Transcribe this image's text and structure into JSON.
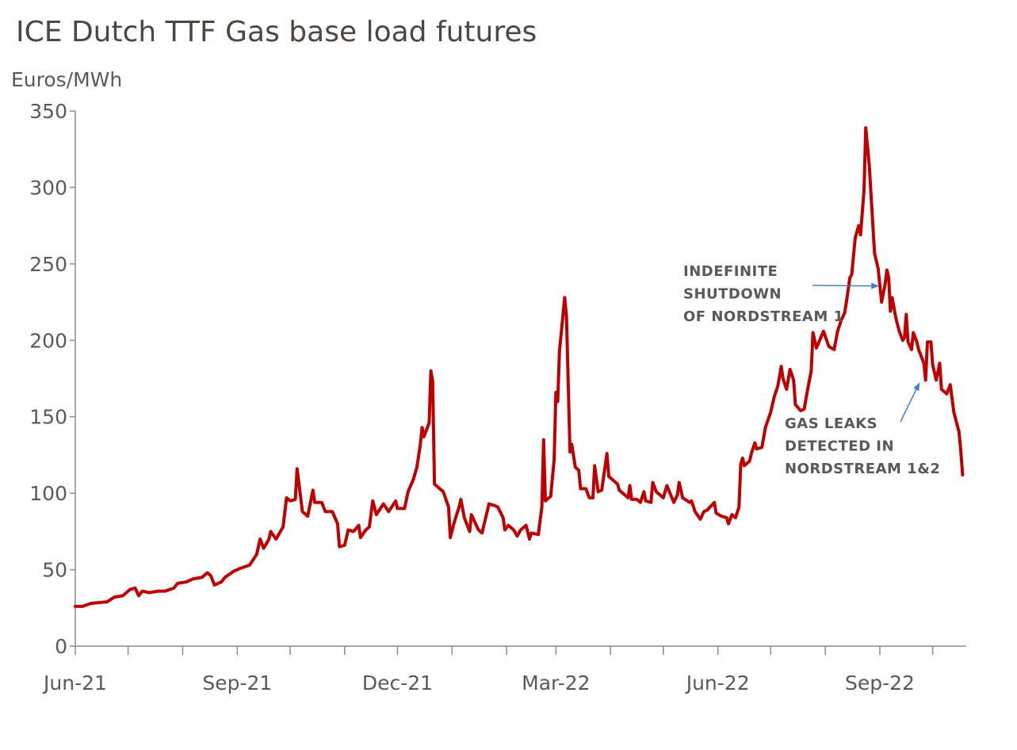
{
  "chart_data": {
    "type": "line",
    "title": "ICE Dutch TTF Gas base load futures",
    "ylabel": "Euros/MWh",
    "xlabel": "",
    "ylim": [
      0,
      350
    ],
    "yticks": [
      0,
      50,
      100,
      150,
      200,
      250,
      300,
      350
    ],
    "xlim": [
      "2021-06-01",
      "2022-10-20"
    ],
    "xtick_labels": [
      {
        "date": "2021-06-01",
        "label": "Jun-21"
      },
      {
        "date": "2021-09-01",
        "label": "Sep-21"
      },
      {
        "date": "2021-12-01",
        "label": "Dec-21"
      },
      {
        "date": "2022-03-01",
        "label": "Mar-22"
      },
      {
        "date": "2022-06-01",
        "label": "Jun-22"
      },
      {
        "date": "2022-09-01",
        "label": "Sep-22"
      }
    ],
    "minor_ticks": "monthly",
    "grid": false,
    "line_color": "#c00000",
    "annotation_color": "#595959",
    "arrow_color": "#4a7ebb",
    "annotations": [
      {
        "lines": [
          "INDEFINITE",
          "SHUTDOWN",
          "OF NORDSTREAM 1"
        ],
        "points_to": {
          "date": "2022-09-02",
          "value": 220
        }
      },
      {
        "lines": [
          "GAS LEAKS",
          "DETECTED IN",
          "NORDSTREAM 1&2"
        ],
        "points_to": {
          "date": "2022-09-27",
          "value": 172
        }
      }
    ],
    "series": [
      {
        "points": [
          [
            "2021-06-01",
            26
          ],
          [
            "2021-06-05",
            26
          ],
          [
            "2021-06-10",
            28
          ],
          [
            "2021-06-19",
            29
          ],
          [
            "2021-06-23",
            32
          ],
          [
            "2021-06-28",
            33
          ],
          [
            "2021-07-02",
            37
          ],
          [
            "2021-07-05",
            38
          ],
          [
            "2021-07-07",
            33
          ],
          [
            "2021-07-09",
            36
          ],
          [
            "2021-07-13",
            35
          ],
          [
            "2021-07-18",
            36
          ],
          [
            "2021-07-22",
            36
          ],
          [
            "2021-07-27",
            38
          ],
          [
            "2021-07-29",
            41
          ],
          [
            "2021-08-03",
            42
          ],
          [
            "2021-08-07",
            44
          ],
          [
            "2021-08-12",
            45
          ],
          [
            "2021-08-15",
            48
          ],
          [
            "2021-08-17",
            46
          ],
          [
            "2021-08-19",
            40
          ],
          [
            "2021-08-23",
            42
          ],
          [
            "2021-08-25",
            45
          ],
          [
            "2021-08-30",
            49
          ],
          [
            "2021-09-03",
            51
          ],
          [
            "2021-09-08",
            53
          ],
          [
            "2021-09-12",
            60
          ],
          [
            "2021-09-14",
            70
          ],
          [
            "2021-09-16",
            64
          ],
          [
            "2021-09-19",
            70
          ],
          [
            "2021-09-20",
            75
          ],
          [
            "2021-09-23",
            70
          ],
          [
            "2021-09-27",
            78
          ],
          [
            "2021-09-29",
            97
          ],
          [
            "2021-10-01",
            95
          ],
          [
            "2021-10-04",
            96
          ],
          [
            "2021-10-05",
            116
          ],
          [
            "2021-10-08",
            88
          ],
          [
            "2021-10-11",
            85
          ],
          [
            "2021-10-14",
            102
          ],
          [
            "2021-10-15",
            94
          ],
          [
            "2021-10-19",
            94
          ],
          [
            "2021-10-21",
            88
          ],
          [
            "2021-10-25",
            88
          ],
          [
            "2021-10-28",
            80
          ],
          [
            "2021-10-29",
            65
          ],
          [
            "2021-11-01",
            66
          ],
          [
            "2021-11-03",
            76
          ],
          [
            "2021-11-06",
            75
          ],
          [
            "2021-11-09",
            79
          ],
          [
            "2021-11-10",
            71
          ],
          [
            "2021-11-13",
            76
          ],
          [
            "2021-11-15",
            78
          ],
          [
            "2021-11-17",
            95
          ],
          [
            "2021-11-19",
            86
          ],
          [
            "2021-11-23",
            93
          ],
          [
            "2021-11-26",
            88
          ],
          [
            "2021-11-30",
            95
          ],
          [
            "2021-12-01",
            90
          ],
          [
            "2021-12-05",
            90
          ],
          [
            "2021-12-07",
            101
          ],
          [
            "2021-12-10",
            109
          ],
          [
            "2021-12-12",
            117
          ],
          [
            "2021-12-14",
            132
          ],
          [
            "2021-12-15",
            143
          ],
          [
            "2021-12-16",
            137
          ],
          [
            "2021-12-19",
            146
          ],
          [
            "2021-12-20",
            180
          ],
          [
            "2021-12-21",
            173
          ],
          [
            "2021-12-22",
            106
          ],
          [
            "2021-12-27",
            101
          ],
          [
            "2021-12-30",
            91
          ],
          [
            "2021-12-31",
            71
          ],
          [
            "2022-01-02",
            80
          ],
          [
            "2022-01-05",
            91
          ],
          [
            "2022-01-06",
            96
          ],
          [
            "2022-01-08",
            84
          ],
          [
            "2022-01-11",
            75
          ],
          [
            "2022-01-12",
            86
          ],
          [
            "2022-01-16",
            76
          ],
          [
            "2022-01-18",
            74
          ],
          [
            "2022-01-22",
            93
          ],
          [
            "2022-01-25",
            92
          ],
          [
            "2022-01-27",
            91
          ],
          [
            "2022-01-30",
            84
          ],
          [
            "2022-01-31",
            76
          ],
          [
            "2022-02-02",
            79
          ],
          [
            "2022-02-05",
            76
          ],
          [
            "2022-02-07",
            72
          ],
          [
            "2022-02-09",
            76
          ],
          [
            "2022-02-12",
            79
          ],
          [
            "2022-02-14",
            70
          ],
          [
            "2022-02-15",
            74
          ],
          [
            "2022-02-19",
            73
          ],
          [
            "2022-02-21",
            91
          ],
          [
            "2022-02-22",
            135
          ],
          [
            "2022-02-23",
            95
          ],
          [
            "2022-02-26",
            98
          ],
          [
            "2022-02-28",
            122
          ],
          [
            "2022-03-01",
            166
          ],
          [
            "2022-03-02",
            160
          ],
          [
            "2022-03-03",
            193
          ],
          [
            "2022-03-06",
            228
          ],
          [
            "2022-03-07",
            215
          ],
          [
            "2022-03-09",
            127
          ],
          [
            "2022-03-10",
            132
          ],
          [
            "2022-03-12",
            117
          ],
          [
            "2022-03-14",
            115
          ],
          [
            "2022-03-15",
            103
          ],
          [
            "2022-03-18",
            103
          ],
          [
            "2022-03-20",
            97
          ],
          [
            "2022-03-22",
            97
          ],
          [
            "2022-03-23",
            118
          ],
          [
            "2022-03-25",
            101
          ],
          [
            "2022-03-27",
            102
          ],
          [
            "2022-03-30",
            126
          ],
          [
            "2022-03-31",
            111
          ],
          [
            "2022-04-05",
            106
          ],
          [
            "2022-04-06",
            102
          ],
          [
            "2022-04-11",
            97
          ],
          [
            "2022-04-12",
            105
          ],
          [
            "2022-04-13",
            96
          ],
          [
            "2022-04-16",
            96
          ],
          [
            "2022-04-18",
            94
          ],
          [
            "2022-04-20",
            101
          ],
          [
            "2022-04-21",
            95
          ],
          [
            "2022-04-24",
            94
          ],
          [
            "2022-04-25",
            107
          ],
          [
            "2022-04-27",
            101
          ],
          [
            "2022-05-01",
            97
          ],
          [
            "2022-05-03",
            105
          ],
          [
            "2022-05-07",
            94
          ],
          [
            "2022-05-09",
            99
          ],
          [
            "2022-05-10",
            107
          ],
          [
            "2022-05-12",
            97
          ],
          [
            "2022-05-16",
            94
          ],
          [
            "2022-05-17",
            95
          ],
          [
            "2022-05-19",
            88
          ],
          [
            "2022-05-22",
            83
          ],
          [
            "2022-05-24",
            88
          ],
          [
            "2022-05-26",
            89
          ],
          [
            "2022-05-30",
            94
          ],
          [
            "2022-05-31",
            87
          ],
          [
            "2022-06-03",
            85
          ],
          [
            "2022-06-06",
            84
          ],
          [
            "2022-06-07",
            80
          ],
          [
            "2022-06-09",
            86
          ],
          [
            "2022-06-11",
            84
          ],
          [
            "2022-06-13",
            91
          ],
          [
            "2022-06-14",
            119
          ],
          [
            "2022-06-15",
            123
          ],
          [
            "2022-06-16",
            118
          ],
          [
            "2022-06-19",
            121
          ],
          [
            "2022-06-20",
            126
          ],
          [
            "2022-06-22",
            133
          ],
          [
            "2022-06-23",
            129
          ],
          [
            "2022-06-26",
            130
          ],
          [
            "2022-06-28",
            143
          ],
          [
            "2022-07-01",
            153
          ],
          [
            "2022-07-03",
            163
          ],
          [
            "2022-07-05",
            170
          ],
          [
            "2022-07-07",
            183
          ],
          [
            "2022-07-08",
            175
          ],
          [
            "2022-07-10",
            168
          ],
          [
            "2022-07-12",
            181
          ],
          [
            "2022-07-14",
            174
          ],
          [
            "2022-07-15",
            158
          ],
          [
            "2022-07-18",
            154
          ],
          [
            "2022-07-20",
            155
          ],
          [
            "2022-07-22",
            168
          ],
          [
            "2022-07-24",
            180
          ],
          [
            "2022-07-25",
            205
          ],
          [
            "2022-07-27",
            195
          ],
          [
            "2022-07-31",
            206
          ],
          [
            "2022-08-03",
            196
          ],
          [
            "2022-08-06",
            194
          ],
          [
            "2022-08-08",
            206
          ],
          [
            "2022-08-10",
            213
          ],
          [
            "2022-08-12",
            218
          ],
          [
            "2022-08-13",
            225
          ],
          [
            "2022-08-15",
            241
          ],
          [
            "2022-08-16",
            243
          ],
          [
            "2022-08-18",
            267
          ],
          [
            "2022-08-20",
            275
          ],
          [
            "2022-08-21",
            269
          ],
          [
            "2022-08-23",
            298
          ],
          [
            "2022-08-24",
            339
          ],
          [
            "2022-08-26",
            314
          ],
          [
            "2022-08-29",
            257
          ],
          [
            "2022-08-31",
            247
          ],
          [
            "2022-09-02",
            225
          ],
          [
            "2022-09-04",
            237
          ],
          [
            "2022-09-05",
            246
          ],
          [
            "2022-09-06",
            241
          ],
          [
            "2022-09-07",
            219
          ],
          [
            "2022-09-08",
            228
          ],
          [
            "2022-09-10",
            215
          ],
          [
            "2022-09-12",
            206
          ],
          [
            "2022-09-14",
            200
          ],
          [
            "2022-09-15",
            202
          ],
          [
            "2022-09-16",
            217
          ],
          [
            "2022-09-17",
            199
          ],
          [
            "2022-09-19",
            194
          ],
          [
            "2022-09-20",
            205
          ],
          [
            "2022-09-22",
            199
          ],
          [
            "2022-09-23",
            194
          ],
          [
            "2022-09-26",
            185
          ],
          [
            "2022-09-27",
            174
          ],
          [
            "2022-09-28",
            199
          ],
          [
            "2022-09-30",
            199
          ],
          [
            "2022-10-01",
            184
          ],
          [
            "2022-10-03",
            174
          ],
          [
            "2022-10-05",
            185
          ],
          [
            "2022-10-06",
            168
          ],
          [
            "2022-10-09",
            165
          ],
          [
            "2022-10-11",
            171
          ],
          [
            "2022-10-13",
            153
          ],
          [
            "2022-10-16",
            140
          ],
          [
            "2022-10-17",
            127
          ],
          [
            "2022-10-18",
            112
          ]
        ]
      }
    ]
  }
}
